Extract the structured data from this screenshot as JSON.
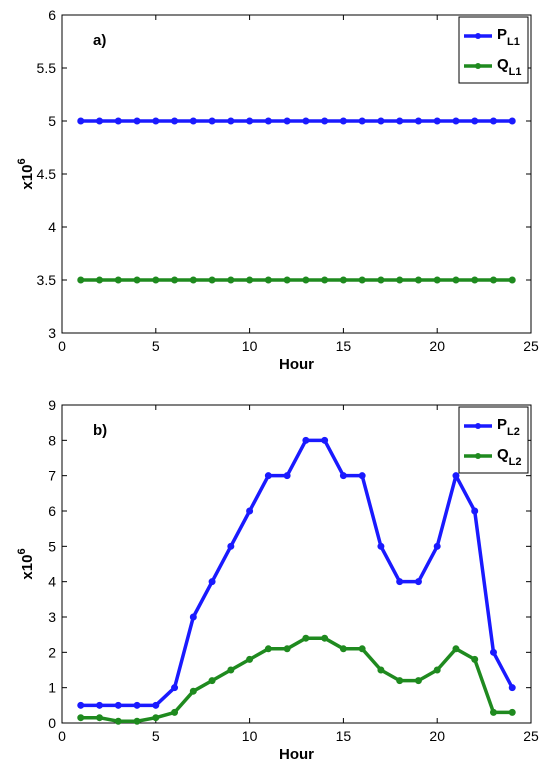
{
  "chart_data": [
    {
      "type": "line",
      "panel_label": "a)",
      "xlabel": "Hour",
      "ylabel_base": "x10",
      "ylabel_exp": "6",
      "xlim": [
        0,
        25
      ],
      "ylim": [
        3,
        6
      ],
      "xticks": [
        0,
        5,
        10,
        15,
        20,
        25
      ],
      "yticks": [
        3,
        3.5,
        4,
        4.5,
        5,
        5.5,
        6
      ],
      "ytick_labels": [
        "3",
        "3.5",
        "4",
        "4.5",
        "5",
        "5.5",
        "6"
      ],
      "legend_position": "top-right",
      "x": [
        1,
        2,
        3,
        4,
        5,
        6,
        7,
        8,
        9,
        10,
        11,
        12,
        13,
        14,
        15,
        16,
        17,
        18,
        19,
        20,
        21,
        22,
        23,
        24
      ],
      "series": [
        {
          "name_main": "P",
          "name_sub": "L1",
          "color": "#1a1aff",
          "values": [
            5,
            5,
            5,
            5,
            5,
            5,
            5,
            5,
            5,
            5,
            5,
            5,
            5,
            5,
            5,
            5,
            5,
            5,
            5,
            5,
            5,
            5,
            5,
            5
          ]
        },
        {
          "name_main": "Q",
          "name_sub": "L1",
          "color": "#1f8a1f",
          "values": [
            3.5,
            3.5,
            3.5,
            3.5,
            3.5,
            3.5,
            3.5,
            3.5,
            3.5,
            3.5,
            3.5,
            3.5,
            3.5,
            3.5,
            3.5,
            3.5,
            3.5,
            3.5,
            3.5,
            3.5,
            3.5,
            3.5,
            3.5,
            3.5
          ]
        }
      ]
    },
    {
      "type": "line",
      "panel_label": "b)",
      "xlabel": "Hour",
      "ylabel_base": "x10",
      "ylabel_exp": "6",
      "xlim": [
        0,
        25
      ],
      "ylim": [
        0,
        9
      ],
      "xticks": [
        0,
        5,
        10,
        15,
        20,
        25
      ],
      "yticks": [
        0,
        1,
        2,
        3,
        4,
        5,
        6,
        7,
        8,
        9
      ],
      "ytick_labels": [
        "0",
        "1",
        "2",
        "3",
        "4",
        "5",
        "6",
        "7",
        "8",
        "9"
      ],
      "legend_position": "top-right",
      "x": [
        1,
        2,
        3,
        4,
        5,
        6,
        7,
        8,
        9,
        10,
        11,
        12,
        13,
        14,
        15,
        16,
        17,
        18,
        19,
        20,
        21,
        22,
        23,
        24
      ],
      "series": [
        {
          "name_main": "P",
          "name_sub": "L2",
          "color": "#1a1aff",
          "values": [
            0.5,
            0.5,
            0.5,
            0.5,
            0.5,
            1.0,
            3.0,
            4.0,
            5.0,
            6.0,
            7.0,
            7.0,
            8.0,
            8.0,
            7.0,
            7.0,
            5.0,
            4.0,
            4.0,
            5.0,
            7.0,
            6.0,
            2.0,
            1.0
          ]
        },
        {
          "name_main": "Q",
          "name_sub": "L2",
          "color": "#1f8a1f",
          "values": [
            0.15,
            0.15,
            0.05,
            0.05,
            0.15,
            0.3,
            0.9,
            1.2,
            1.5,
            1.8,
            2.1,
            2.1,
            2.4,
            2.4,
            2.1,
            2.1,
            1.5,
            1.2,
            1.2,
            1.5,
            2.1,
            1.8,
            0.3,
            0.3
          ]
        }
      ]
    }
  ]
}
